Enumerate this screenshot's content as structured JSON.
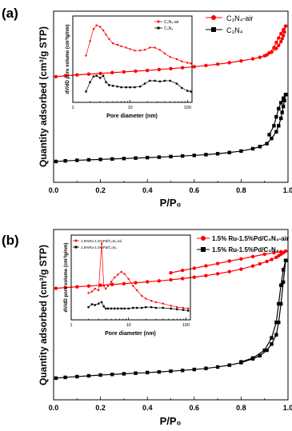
{
  "chart_data": [
    {
      "type": "line",
      "panel_label": "(a)",
      "xlabel": "P/P₀",
      "ylabel": "Quantity adsorbed (cm³/g STP)",
      "xlim": [
        0.0,
        1.0
      ],
      "xticks": [
        "0.0",
        "0.2",
        "0.4",
        "0.6",
        "0.8",
        "1.0"
      ],
      "y_ticks_labeled": false,
      "legend_position": "top-right",
      "series": [
        {
          "name": "C₃N₄-air",
          "color": "#ff0000",
          "marker": "circle",
          "x": [
            0.01,
            0.05,
            0.1,
            0.15,
            0.2,
            0.25,
            0.3,
            0.35,
            0.4,
            0.45,
            0.5,
            0.55,
            0.6,
            0.65,
            0.7,
            0.75,
            0.8,
            0.85,
            0.88,
            0.91,
            0.93,
            0.95,
            0.96,
            0.97,
            0.975,
            0.98,
            0.985,
            0.99
          ],
          "y": [
            61,
            61.6,
            62.2,
            62.7,
            63.2,
            63.7,
            64.2,
            64.7,
            65.2,
            65.8,
            66.4,
            67.0,
            67.7,
            68.5,
            69.4,
            70.4,
            71.6,
            73.0,
            74.0,
            75.6,
            77.4,
            80.0,
            82.0,
            84.5,
            86.5,
            88.5,
            91.0,
            95.0
          ],
          "desorption_x": [
            0.99,
            0.98,
            0.97,
            0.96,
            0.95,
            0.94,
            0.92,
            0.9
          ],
          "desorption_y": [
            95.0,
            92.5,
            90.0,
            87.0,
            84.0,
            80.5,
            77.0,
            75.0
          ]
        },
        {
          "name": "C₃N₄",
          "color": "#000000",
          "marker": "square",
          "x": [
            0.01,
            0.05,
            0.1,
            0.15,
            0.2,
            0.25,
            0.3,
            0.35,
            0.4,
            0.45,
            0.5,
            0.55,
            0.6,
            0.65,
            0.7,
            0.75,
            0.8,
            0.85,
            0.88,
            0.91,
            0.93,
            0.95,
            0.96,
            0.97,
            0.975,
            0.98,
            0.985,
            0.99
          ],
          "y": [
            4.0,
            4.4,
            4.8,
            5.1,
            5.4,
            5.7,
            6.0,
            6.3,
            6.6,
            6.9,
            7.3,
            7.7,
            8.1,
            8.6,
            9.2,
            10.0,
            11.0,
            12.6,
            14.0,
            16.0,
            19.5,
            24.0,
            28.0,
            33.0,
            37.0,
            41.0,
            45.0,
            49.0
          ],
          "desorption_x": [
            0.99,
            0.98,
            0.97,
            0.96,
            0.95,
            0.94,
            0.92
          ],
          "desorption_y": [
            49.0,
            46.5,
            43.5,
            39.5,
            34.0,
            28.0,
            22.0
          ]
        }
      ],
      "inset": {
        "xlabel": "Pore diameter (nm)",
        "ylabel": "dV/dD pore volume (cm³/g/nm)",
        "xscale": "log",
        "xlim": [
          1,
          120
        ],
        "xticks": [
          "1",
          "10",
          "100"
        ],
        "legend_position": "top-left",
        "series": [
          {
            "name": "C₃N₄-air",
            "color": "#ff0000",
            "marker": "circle",
            "x": [
              1.7,
              2.0,
              2.3,
              2.6,
              3.0,
              3.4,
              3.8,
              4.3,
              5.0,
              6.0,
              7.0,
              8.5,
              10,
              12,
              15,
              18,
              22,
              27,
              33,
              40,
              50,
              65,
              80,
              100,
              115
            ],
            "y": [
              0.55,
              0.75,
              0.92,
              0.97,
              0.95,
              0.9,
              0.84,
              0.78,
              0.72,
              0.7,
              0.68,
              0.66,
              0.64,
              0.62,
              0.62,
              0.63,
              0.66,
              0.66,
              0.63,
              0.58,
              0.53,
              0.5,
              0.47,
              0.45,
              0.44
            ]
          },
          {
            "name": "C₃N₄",
            "color": "#000000",
            "marker": "square",
            "x": [
              1.7,
              2.0,
              2.3,
              2.6,
              3.0,
              3.4,
              3.8,
              4.3,
              5.0,
              6.0,
              7.0,
              8.5,
              10,
              12,
              15,
              18,
              22,
              27,
              33,
              40,
              50,
              65,
              80,
              100,
              115
            ],
            "y": [
              0.05,
              0.18,
              0.26,
              0.27,
              0.24,
              0.27,
              0.18,
              0.14,
              0.13,
              0.12,
              0.11,
              0.11,
              0.11,
              0.11,
              0.12,
              0.16,
              0.2,
              0.2,
              0.19,
              0.2,
              0.2,
              0.16,
              0.1,
              0.06,
              0.05
            ]
          }
        ]
      }
    },
    {
      "type": "line",
      "panel_label": "(b)",
      "xlabel": "P/P₀",
      "ylabel": "Quantity adsorbed (cm³/g STP)",
      "xlim": [
        0.0,
        1.0
      ],
      "xticks": [
        "0.0",
        "0.2",
        "0.4",
        "0.6",
        "0.8",
        "1.0"
      ],
      "y_ticks_labeled": false,
      "legend_position": "top-right",
      "series": [
        {
          "name": "1.5% Ru-1.5%Pd/C₃N₄-air",
          "color": "#ff0000",
          "marker": "circle",
          "x": [
            0.01,
            0.05,
            0.1,
            0.15,
            0.2,
            0.25,
            0.3,
            0.35,
            0.4,
            0.45,
            0.5,
            0.55,
            0.6,
            0.65,
            0.7,
            0.75,
            0.8,
            0.85,
            0.88,
            0.91,
            0.93,
            0.95,
            0.96,
            0.97,
            0.98,
            0.99
          ],
          "y": [
            62,
            62.5,
            63.0,
            63.5,
            64.0,
            64.5,
            65.0,
            65.6,
            66.2,
            66.8,
            67.5,
            68.3,
            69.2,
            70.2,
            71.4,
            72.8,
            74.4,
            76.4,
            77.8,
            79.4,
            80.6,
            82.0,
            83.0,
            84.0,
            85.0,
            86.0
          ],
          "desorption_x": [
            0.99,
            0.97,
            0.94,
            0.9,
            0.85,
            0.8,
            0.75,
            0.7,
            0.65,
            0.6,
            0.55,
            0.5
          ],
          "desorption_y": [
            86.0,
            85.6,
            85.0,
            84.0,
            82.5,
            81.0,
            79.6,
            78.0,
            76.5,
            75.0,
            73.6,
            72.0
          ]
        },
        {
          "name": "1.5% Ru-1.5%Pd/C₃N₄",
          "color": "#000000",
          "marker": "square",
          "x": [
            0.01,
            0.05,
            0.1,
            0.15,
            0.2,
            0.25,
            0.3,
            0.35,
            0.4,
            0.45,
            0.5,
            0.55,
            0.6,
            0.65,
            0.7,
            0.75,
            0.8,
            0.85,
            0.88,
            0.91,
            0.93,
            0.95,
            0.96,
            0.97,
            0.98,
            0.99
          ],
          "y": [
            4.0,
            4.5,
            5.0,
            5.5,
            6.0,
            6.4,
            6.8,
            7.2,
            7.6,
            8.0,
            8.5,
            9.0,
            9.6,
            10.3,
            11.2,
            12.4,
            14.0,
            16.5,
            18.5,
            22.0,
            26.0,
            32.0,
            40.0,
            52.0,
            66.0,
            80.0
          ],
          "desorption_x": [
            0.99,
            0.98,
            0.97,
            0.96,
            0.95,
            0.93,
            0.9,
            0.85,
            0.8
          ],
          "desorption_y": [
            80.0,
            74.0,
            64.0,
            52.0,
            40.0,
            30.0,
            22.0,
            17.0,
            14.5
          ]
        }
      ],
      "inset": {
        "xlabel": "Pore diameter (nm)",
        "ylabel": "dV/dD pore volume (cm³/g/nm)",
        "xscale": "log",
        "xlim": [
          1,
          120
        ],
        "xticks": [
          "1",
          "10",
          "100"
        ],
        "legend_position": "top-left",
        "series": [
          {
            "name": "1.5%Ru-1.5%Pd/C₃N₄-air",
            "color": "#ff0000",
            "marker": "circle",
            "x": [
              2.0,
              2.3,
              2.6,
              3.0,
              3.4,
              3.7,
              4.0,
              4.4,
              5.0,
              5.7,
              6.5,
              7.5,
              8.5,
              10,
              12,
              14,
              17,
              20,
              25,
              30,
              40,
              55,
              70,
              90,
              110
            ],
            "y": [
              0.28,
              0.3,
              0.34,
              0.32,
              0.98,
              0.38,
              0.34,
              0.38,
              0.44,
              0.5,
              0.54,
              0.58,
              0.55,
              0.48,
              0.38,
              0.32,
              0.24,
              0.2,
              0.17,
              0.15,
              0.13,
              0.1,
              0.08,
              0.07,
              0.06
            ]
          },
          {
            "name": "1.5%Ru-1.5%Pd/C₃N₄",
            "color": "#000000",
            "marker": "square",
            "x": [
              2.0,
              2.3,
              2.6,
              3.0,
              3.4,
              3.7,
              4.0,
              4.4,
              5.0,
              5.7,
              6.5,
              7.5,
              8.5,
              10,
              12,
              14,
              17,
              20,
              25,
              30,
              40,
              55,
              70,
              90,
              110
            ],
            "y": [
              0.08,
              0.12,
              0.11,
              0.13,
              0.15,
              0.09,
              0.06,
              0.06,
              0.06,
              0.06,
              0.06,
              0.06,
              0.06,
              0.06,
              0.07,
              0.07,
              0.07,
              0.08,
              0.08,
              0.07,
              0.07,
              0.06,
              0.05,
              0.04,
              0.03
            ]
          }
        ]
      }
    }
  ]
}
